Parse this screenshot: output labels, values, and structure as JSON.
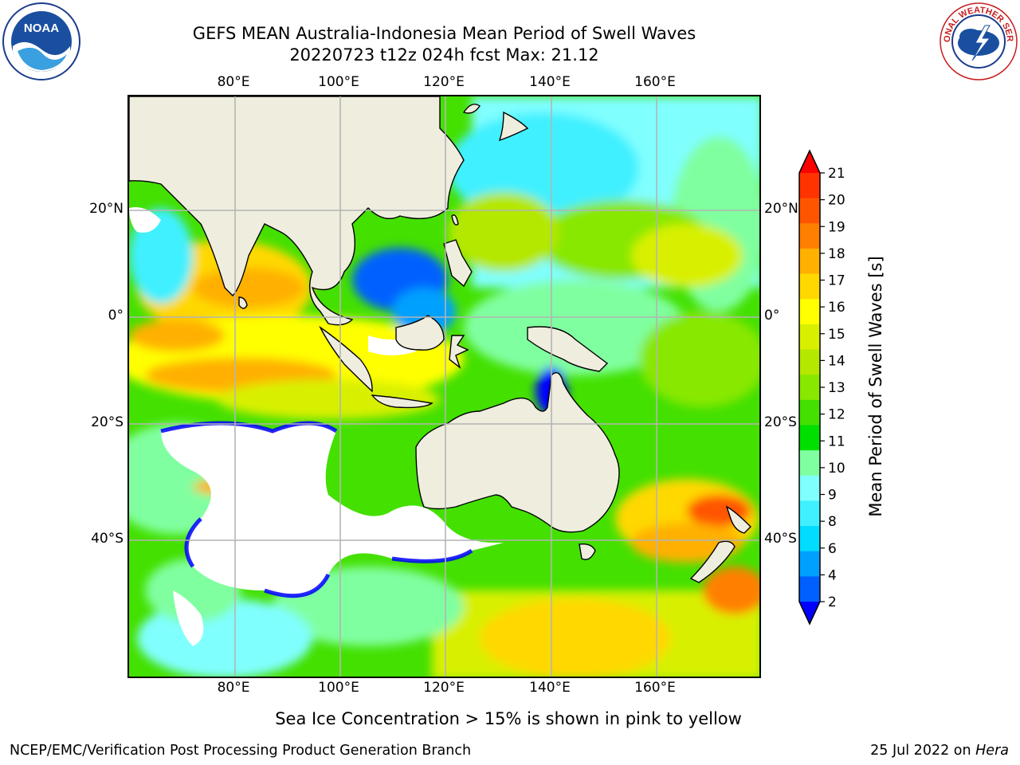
{
  "title_line1": "GEFS MEAN Australia-Indonesia Mean Period of Swell Waves",
  "title_line2": "20220723 t12z 024h fcst   Max: 21.12",
  "lon_labels": [
    "80°E",
    "100°E",
    "120°E",
    "140°E",
    "160°E"
  ],
  "lat_labels": [
    "20°N",
    "0°",
    "20°S",
    "40°S"
  ],
  "colorbar": {
    "label": "Mean Period of Swell Waves [s]",
    "ticks": [
      "21",
      "20",
      "19",
      "18",
      "17",
      "16",
      "15",
      "14",
      "13",
      "12",
      "11",
      "10",
      "9",
      "8",
      "6",
      "4",
      "2"
    ],
    "colors": [
      "#ff0000",
      "#ff3300",
      "#ff5500",
      "#ff8000",
      "#ffb000",
      "#ffd800",
      "#ffff00",
      "#d8f000",
      "#b4e800",
      "#88e800",
      "#44e000",
      "#00e000",
      "#80ffa0",
      "#80ffff",
      "#40f0ff",
      "#00ddff",
      "#00a0ff",
      "#0060ff",
      "#0000ff"
    ]
  },
  "colors": {
    "land": "#efedde",
    "ocean_mask": "#ffffff",
    "grid": "#b4b4b4",
    "coast": "#000000"
  },
  "logos": {
    "noaa_text": "NOAA",
    "nws_text": "NATIONAL WEATHER SERVICE"
  },
  "footer_note": "Sea Ice Concentration > 15% is shown in pink to yellow",
  "footer_left": "NCEP/EMC/Verification Post Processing Product Generation Branch",
  "footer_right_date": "25 Jul 2022 on ",
  "footer_right_host": "Hera"
}
